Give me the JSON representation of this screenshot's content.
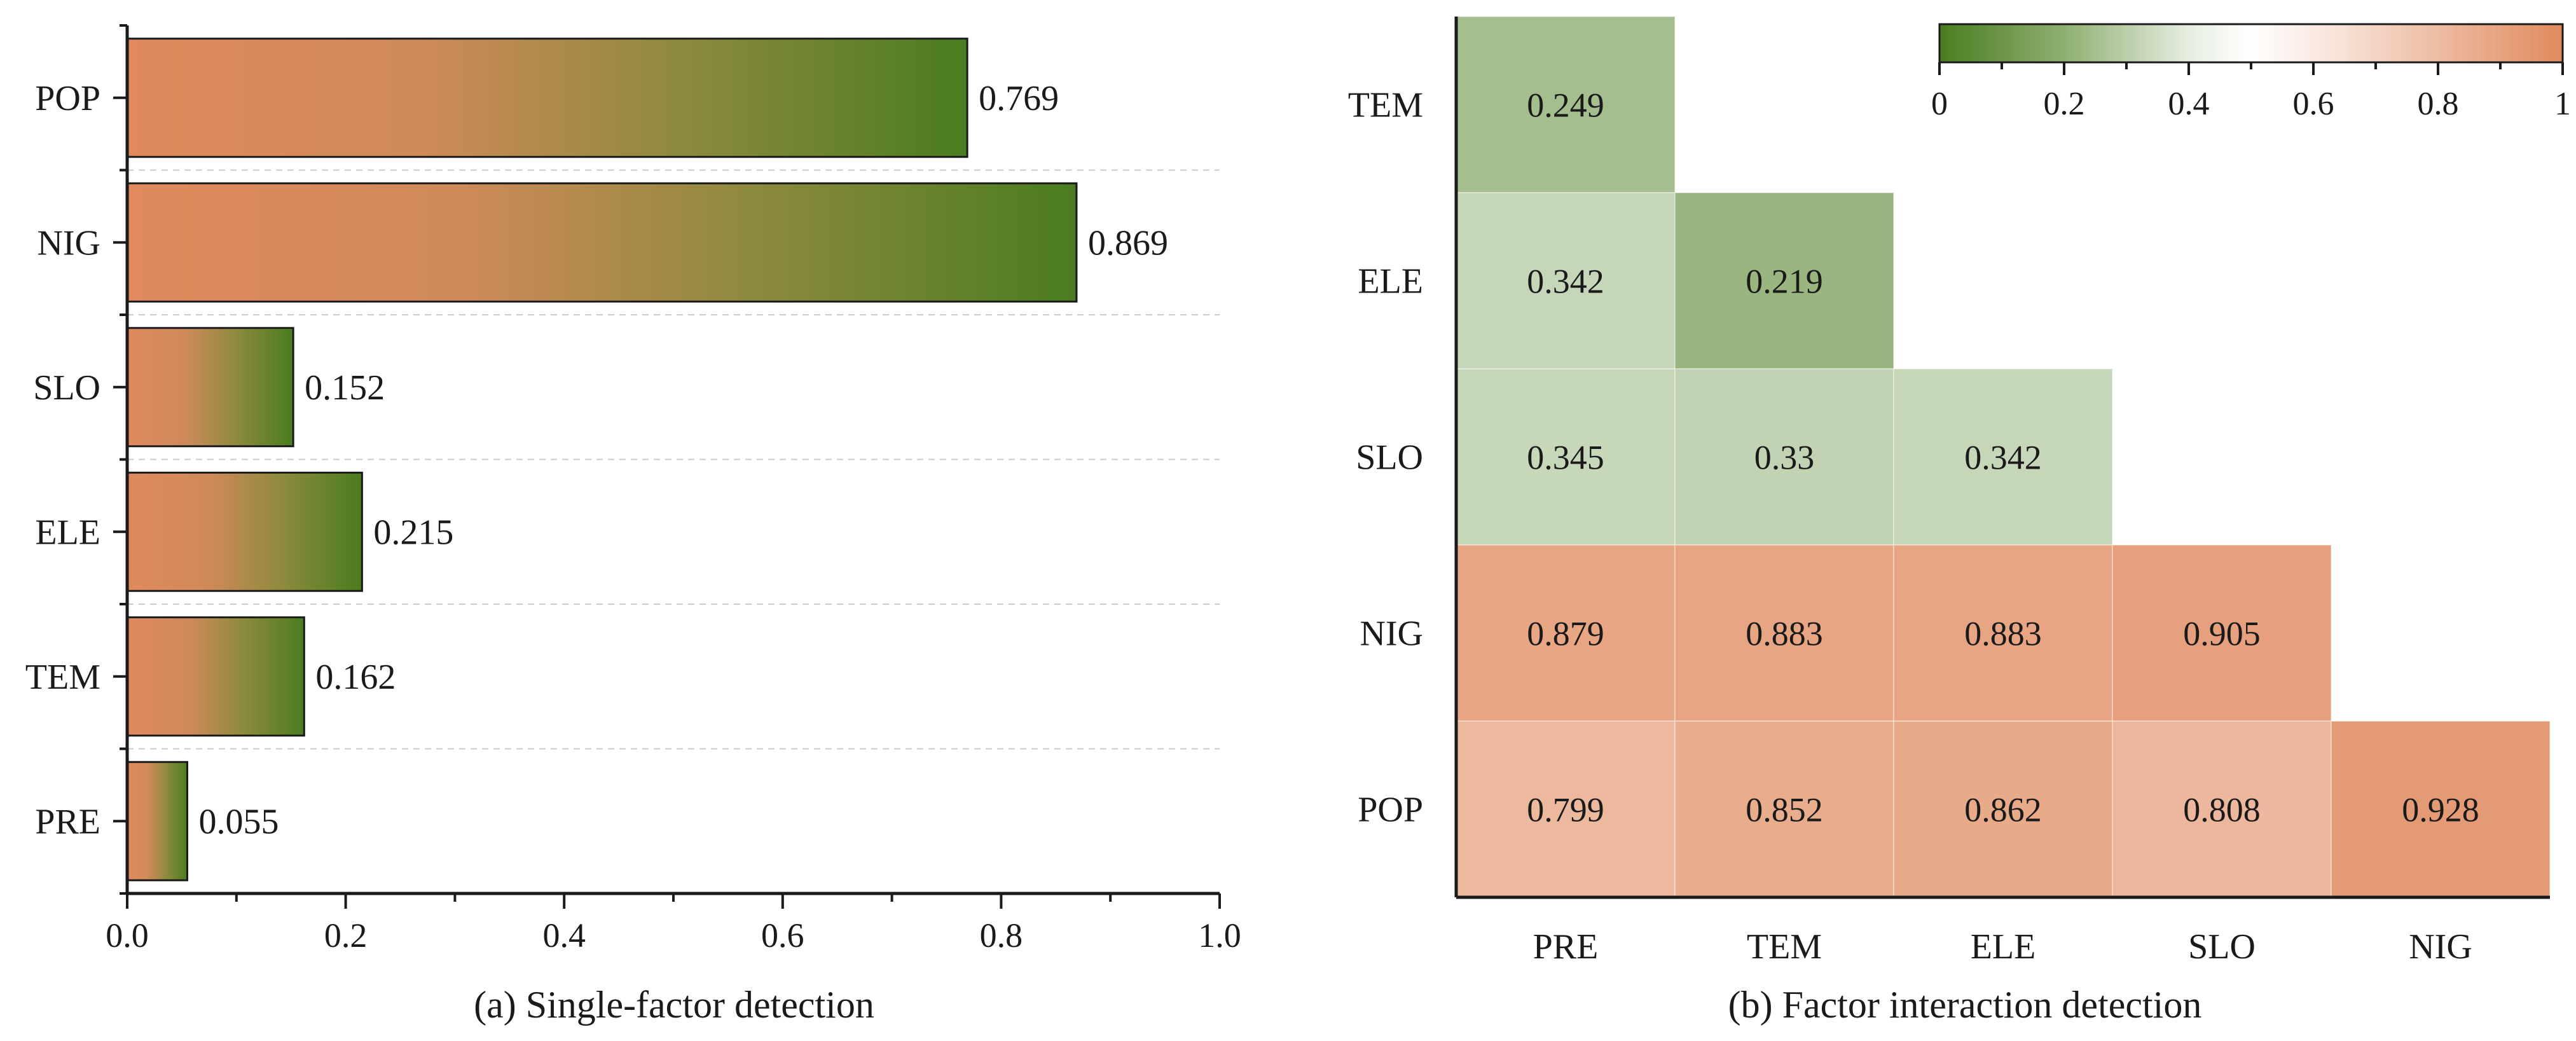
{
  "colors": {
    "green": "#4a7d1f",
    "white": "#ffffff",
    "orange": "#e08a5e",
    "axis": "#1a1a1a"
  },
  "chart_data": [
    {
      "type": "bar",
      "orientation": "horizontal",
      "caption": "(a) Single-factor detection",
      "categories": [
        "POP",
        "NIG",
        "SLO",
        "ELE",
        "TEM",
        "PRE"
      ],
      "values": [
        0.769,
        0.869,
        0.152,
        0.215,
        0.162,
        0.055
      ],
      "value_labels": [
        "0.769",
        "0.869",
        "0.152",
        "0.215",
        "0.162",
        "0.055"
      ],
      "xlim": [
        0,
        1.0
      ],
      "xticks": [
        "0.0",
        "0.2",
        "0.4",
        "0.6",
        "0.8",
        "1.0"
      ],
      "bar_fill": "gradient orange to green",
      "grid": "dashed horizontal separators"
    },
    {
      "type": "heatmap",
      "caption": "(b) Factor interaction detection",
      "rows": [
        "TEM",
        "ELE",
        "SLO",
        "NIG",
        "POP"
      ],
      "columns": [
        "PRE",
        "TEM",
        "ELE",
        "SLO",
        "NIG"
      ],
      "values": [
        [
          0.249,
          null,
          null,
          null,
          null
        ],
        [
          0.342,
          0.219,
          null,
          null,
          null
        ],
        [
          0.345,
          0.33,
          0.342,
          null,
          null
        ],
        [
          0.879,
          0.883,
          0.883,
          0.905,
          null
        ],
        [
          0.799,
          0.852,
          0.862,
          0.808,
          0.928
        ]
      ],
      "value_labels": [
        [
          "0.249"
        ],
        [
          "0.342",
          "0.219"
        ],
        [
          "0.345",
          "0.33",
          "0.342"
        ],
        [
          "0.879",
          "0.883",
          "0.883",
          "0.905"
        ],
        [
          "0.799",
          "0.852",
          "0.862",
          "0.808",
          "0.928"
        ]
      ],
      "colorbar": {
        "range": [
          0,
          1
        ],
        "ticks": [
          "0",
          "0.2",
          "0.4",
          "0.6",
          "0.8",
          "1"
        ],
        "colors": [
          "green",
          "white",
          "orange"
        ],
        "placement": "top-right"
      }
    }
  ]
}
